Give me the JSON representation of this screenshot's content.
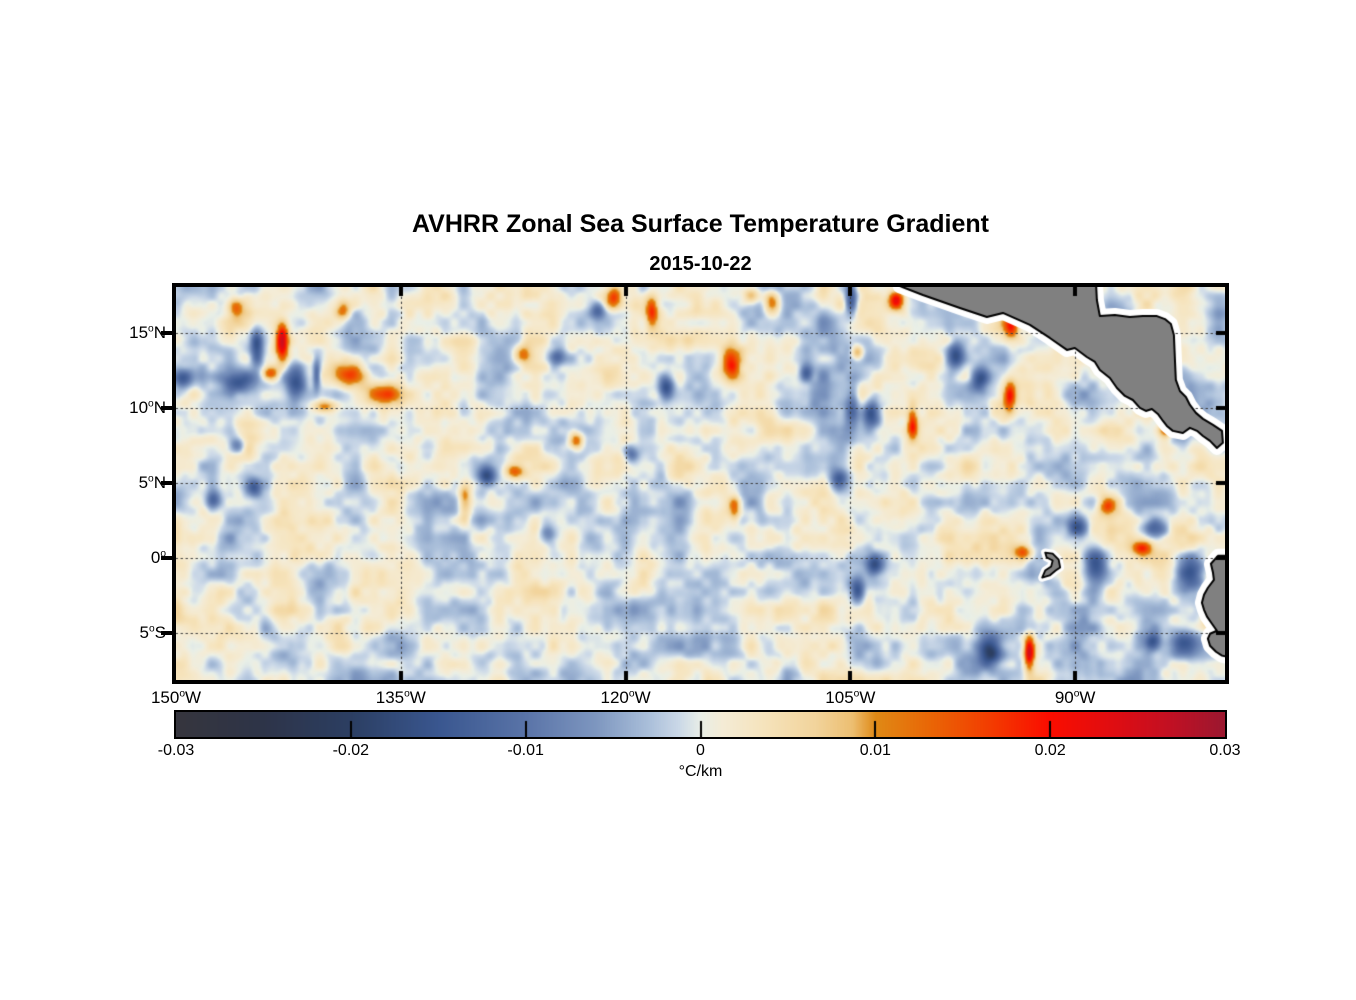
{
  "title": "AVHRR Zonal Sea Surface Temperature Gradient",
  "subtitle": "2015-10-22",
  "axes": {
    "x_ticks": [
      {
        "label": "150°W",
        "lon": -150
      },
      {
        "label": "135°W",
        "lon": -135
      },
      {
        "label": "120°W",
        "lon": -120
      },
      {
        "label": "105°W",
        "lon": -105
      },
      {
        "label": "90°W",
        "lon": -90
      }
    ],
    "y_ticks": [
      {
        "label": "15°N",
        "lat": 15
      },
      {
        "label": "10°N",
        "lat": 10
      },
      {
        "label": "5°N",
        "lat": 5
      },
      {
        "label": "0°",
        "lat": 0
      },
      {
        "label": "5°S",
        "lat": -5
      }
    ]
  },
  "colorbar": {
    "min": -0.03,
    "max": 0.03,
    "unit": "°C/km",
    "ticks": [
      {
        "v": -0.03,
        "label": "-0.03"
      },
      {
        "v": -0.02,
        "label": "-0.02"
      },
      {
        "v": -0.01,
        "label": "-0.01"
      },
      {
        "v": 0,
        "label": "0"
      },
      {
        "v": 0.01,
        "label": "0.01"
      },
      {
        "v": 0.02,
        "label": "0.02"
      },
      {
        "v": 0.03,
        "label": "0.03"
      }
    ]
  },
  "colors": {
    "land": "#808080",
    "coastline": "#000000",
    "halo": "#ffffff",
    "grid": "#3c3c3c",
    "frame": "#000000"
  },
  "chart_data": {
    "type": "heatmap",
    "title": "AVHRR Zonal Sea Surface Temperature Gradient",
    "date": "2015-10-22",
    "xlabel_ticks_deg_west": [
      150,
      135,
      120,
      105,
      90
    ],
    "ylabel_ticks_deg_north": [
      15,
      10,
      5,
      0,
      -5
    ],
    "lon_range": [
      -150,
      -80
    ],
    "lat_range": [
      -8.15,
      18.07
    ],
    "value_range": [
      -0.03,
      0.03
    ],
    "units": "°C/km",
    "colormap_stops": [
      [
        0.0,
        "#36363e"
      ],
      [
        0.08,
        "#2e3448"
      ],
      [
        0.167,
        "#2c3f63"
      ],
      [
        0.25,
        "#3a5790"
      ],
      [
        0.333,
        "#5a74a8"
      ],
      [
        0.4,
        "#7e97c0"
      ],
      [
        0.45,
        "#aabfda"
      ],
      [
        0.48,
        "#ccd9e8"
      ],
      [
        0.5,
        "#e9efe7"
      ],
      [
        0.52,
        "#f4ecd7"
      ],
      [
        0.56,
        "#f6e4bd"
      ],
      [
        0.61,
        "#f2d49c"
      ],
      [
        0.645,
        "#edbf72"
      ],
      [
        0.667,
        "#e08a16"
      ],
      [
        0.72,
        "#ea6606"
      ],
      [
        0.78,
        "#f43a01"
      ],
      [
        0.833,
        "#fb0d00"
      ],
      [
        0.9,
        "#dd0d14"
      ],
      [
        0.95,
        "#c11124"
      ],
      [
        1.0,
        "#9c1830"
      ]
    ],
    "noise": {
      "seed": 11,
      "octaves": [
        [
          36,
          0.004
        ],
        [
          18,
          0.0031
        ],
        [
          9,
          0.0017
        ]
      ]
    },
    "feature_format": [
      "lon",
      "lat",
      "sigma_lon_deg",
      "sigma_lat_deg",
      "amplitude_C_per_km"
    ],
    "features": [
      [
        -142.9,
        14.5,
        0.3,
        0.85,
        0.027
      ],
      [
        -144.6,
        14.2,
        0.3,
        1.0,
        -0.015
      ],
      [
        -142.0,
        11.9,
        0.45,
        0.85,
        -0.016
      ],
      [
        -145.9,
        11.7,
        0.8,
        0.55,
        -0.014
      ],
      [
        -143.7,
        12.3,
        0.4,
        0.35,
        0.015
      ],
      [
        -138.5,
        12.2,
        0.8,
        0.55,
        0.017
      ],
      [
        -136.4,
        10.9,
        0.9,
        0.55,
        0.017
      ],
      [
        -140.6,
        12.2,
        0.18,
        0.7,
        -0.013
      ],
      [
        -140.1,
        10.1,
        0.55,
        0.3,
        0.014
      ],
      [
        -149.6,
        11.9,
        0.45,
        0.5,
        -0.013
      ],
      [
        -146.0,
        16.7,
        0.35,
        0.45,
        0.012
      ],
      [
        -138.8,
        16.5,
        0.35,
        0.45,
        0.012
      ],
      [
        -126.9,
        13.6,
        0.4,
        0.45,
        0.013
      ],
      [
        -124.6,
        13.4,
        0.4,
        0.45,
        -0.014
      ],
      [
        -145.9,
        7.5,
        0.35,
        0.4,
        -0.012
      ],
      [
        -144.8,
        4.7,
        0.35,
        0.4,
        -0.011
      ],
      [
        -147.5,
        3.9,
        0.35,
        0.45,
        -0.011
      ],
      [
        -130.7,
        3.9,
        0.3,
        0.9,
        0.014
      ],
      [
        -129.2,
        5.4,
        0.4,
        0.45,
        -0.016
      ],
      [
        -127.4,
        5.7,
        0.45,
        0.35,
        0.014
      ],
      [
        -125.1,
        1.5,
        0.45,
        0.5,
        -0.012
      ],
      [
        -123.3,
        7.8,
        0.35,
        0.4,
        0.016
      ],
      [
        -120.8,
        17.4,
        0.4,
        0.5,
        0.015
      ],
      [
        -118.2,
        16.4,
        0.3,
        0.8,
        0.015
      ],
      [
        -121.8,
        16.5,
        0.35,
        0.4,
        -0.012
      ],
      [
        -110.2,
        17.0,
        0.35,
        0.55,
        0.013
      ],
      [
        -117.3,
        11.3,
        0.35,
        0.6,
        -0.017
      ],
      [
        -112.9,
        13.0,
        0.45,
        0.85,
        0.016
      ],
      [
        -107.9,
        12.3,
        0.3,
        0.4,
        -0.013
      ],
      [
        -104.9,
        17.3,
        0.3,
        0.8,
        -0.018
      ],
      [
        -104.5,
        13.7,
        0.3,
        0.35,
        0.013
      ],
      [
        -104.8,
        10.3,
        0.35,
        1.1,
        -0.012
      ],
      [
        -103.5,
        9.7,
        0.4,
        0.7,
        -0.015
      ],
      [
        -101.9,
        17.2,
        0.35,
        0.45,
        0.021
      ],
      [
        -112.7,
        3.2,
        0.28,
        0.65,
        0.013
      ],
      [
        -119.6,
        6.9,
        0.35,
        0.4,
        -0.011
      ],
      [
        -111.6,
        17.5,
        0.45,
        0.4,
        0.012
      ],
      [
        -97.9,
        13.5,
        0.4,
        0.7,
        -0.016
      ],
      [
        -96.3,
        11.9,
        0.45,
        0.6,
        -0.015
      ],
      [
        -94.2,
        15.4,
        0.35,
        0.6,
        0.016
      ],
      [
        -94.3,
        10.8,
        0.28,
        0.7,
        0.019
      ],
      [
        -100.8,
        8.9,
        0.25,
        0.7,
        0.018
      ],
      [
        -105.7,
        5.1,
        0.4,
        0.5,
        -0.013
      ],
      [
        -103.3,
        -0.5,
        0.4,
        0.55,
        -0.017
      ],
      [
        -104.5,
        -2.3,
        0.35,
        0.6,
        -0.015
      ],
      [
        -93.4,
        0.3,
        0.45,
        0.35,
        0.015
      ],
      [
        -89.8,
        2.0,
        0.5,
        0.5,
        -0.015
      ],
      [
        -88.6,
        -0.6,
        0.55,
        0.9,
        -0.017
      ],
      [
        -87.8,
        3.4,
        0.4,
        0.4,
        0.013
      ],
      [
        -85.5,
        0.6,
        0.45,
        0.35,
        0.013
      ],
      [
        -84.6,
        1.9,
        0.55,
        0.45,
        -0.016
      ],
      [
        -82.3,
        -1.0,
        0.7,
        0.9,
        -0.018
      ],
      [
        -81.0,
        -3.3,
        0.3,
        0.8,
        0.029
      ],
      [
        -82.7,
        -5.8,
        0.75,
        0.7,
        -0.018
      ],
      [
        -93.0,
        -6.4,
        0.25,
        0.8,
        0.025
      ],
      [
        -95.6,
        -6.3,
        0.55,
        0.65,
        -0.017
      ],
      [
        -84.8,
        -5.7,
        0.4,
        0.4,
        -0.013
      ],
      [
        -83.9,
        8.5,
        0.35,
        0.35,
        0.015
      ]
    ],
    "land": {
      "central_america": [
        [
          -101.7,
          18.13
        ],
        [
          -100.16,
          17.54
        ],
        [
          -97.69,
          16.67
        ],
        [
          -95.89,
          16.07
        ],
        [
          -94.82,
          16.34
        ],
        [
          -93.02,
          15.54
        ],
        [
          -91.69,
          14.67
        ],
        [
          -90.55,
          13.87
        ],
        [
          -90.02,
          14.0
        ],
        [
          -89.22,
          13.4
        ],
        [
          -88.68,
          13.07
        ],
        [
          -88.35,
          12.53
        ],
        [
          -87.68,
          12.0
        ],
        [
          -87.21,
          11.33
        ],
        [
          -86.68,
          10.8
        ],
        [
          -86.15,
          10.53
        ],
        [
          -85.68,
          10.0
        ],
        [
          -85.28,
          9.8
        ],
        [
          -84.88,
          9.93
        ],
        [
          -84.48,
          9.6
        ],
        [
          -84.14,
          9.13
        ],
        [
          -83.88,
          8.8
        ],
        [
          -83.48,
          8.47
        ],
        [
          -82.81,
          8.33
        ],
        [
          -82.34,
          8.67
        ],
        [
          -81.87,
          8.47
        ],
        [
          -81.47,
          8.13
        ],
        [
          -81.0,
          7.8
        ],
        [
          -80.54,
          7.33
        ],
        [
          -80.14,
          7.67
        ],
        [
          -80.2,
          8.47
        ],
        [
          -80.8,
          8.87
        ],
        [
          -81.47,
          9.27
        ],
        [
          -81.94,
          9.67
        ],
        [
          -82.34,
          10.2
        ],
        [
          -82.61,
          10.73
        ],
        [
          -83.01,
          11.13
        ],
        [
          -83.28,
          11.87
        ],
        [
          -83.34,
          13.2
        ],
        [
          -83.41,
          14.87
        ],
        [
          -83.61,
          15.6
        ],
        [
          -84.01,
          15.93
        ],
        [
          -84.54,
          16.13
        ],
        [
          -85.48,
          16.13
        ],
        [
          -86.35,
          16.07
        ],
        [
          -87.35,
          16.2
        ],
        [
          -88.35,
          16.13
        ],
        [
          -88.55,
          17.2
        ],
        [
          -88.61,
          18.4
        ]
      ],
      "south_america": [
        [
          -80.47,
          0.13
        ],
        [
          -80.94,
          -0.4
        ],
        [
          -80.8,
          -1.0
        ],
        [
          -80.74,
          -1.47
        ],
        [
          -81.14,
          -2.0
        ],
        [
          -81.4,
          -2.47
        ],
        [
          -81.54,
          -3.0
        ],
        [
          -81.4,
          -3.47
        ],
        [
          -81.2,
          -3.93
        ],
        [
          -80.87,
          -4.4
        ],
        [
          -80.54,
          -4.87
        ],
        [
          -81.0,
          -5.07
        ],
        [
          -81.14,
          -5.4
        ],
        [
          -81.0,
          -5.87
        ],
        [
          -80.6,
          -6.27
        ],
        [
          -80.2,
          -6.53
        ],
        [
          -79.6,
          -6.67
        ],
        [
          -79.6,
          0.13
        ]
      ],
      "galapagos": [
        [
          -92.0,
          0.35
        ],
        [
          -91.5,
          0.28
        ],
        [
          -91.1,
          -0.12
        ],
        [
          -91.0,
          -0.65
        ],
        [
          -91.3,
          -0.85
        ],
        [
          -91.7,
          -1.18
        ],
        [
          -92.2,
          -1.32
        ],
        [
          -92.0,
          -0.85
        ],
        [
          -91.6,
          -0.58
        ],
        [
          -91.5,
          -0.18
        ],
        [
          -91.9,
          0.02
        ]
      ]
    }
  }
}
